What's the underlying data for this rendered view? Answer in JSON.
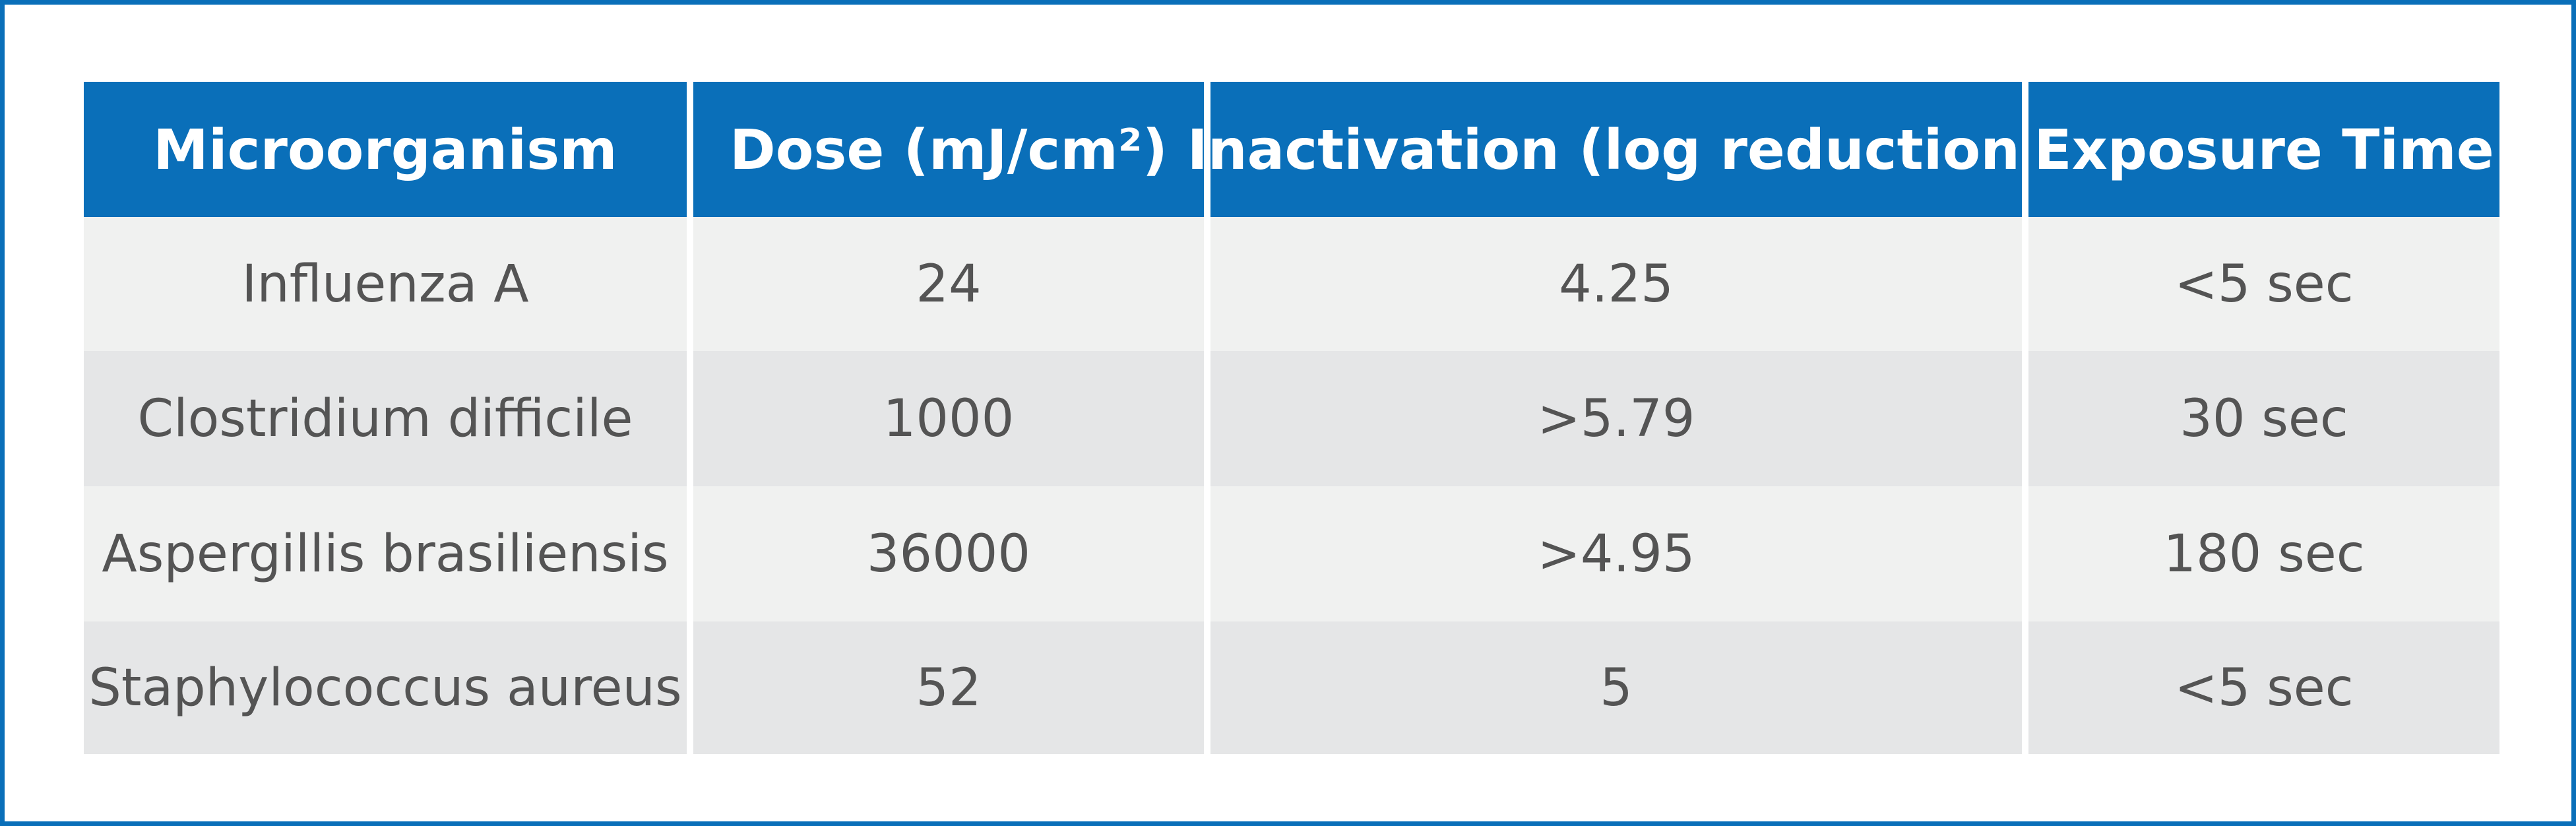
{
  "table": {
    "headers": [
      "Microorganism",
      "Dose (mJ/cm²)",
      "Inactivation (log reduction)",
      "Exposure Time"
    ],
    "rows": [
      [
        "Influenza A",
        "24",
        "4.25",
        "<5 sec"
      ],
      [
        "Clostridium difficile",
        "1000",
        ">5.79",
        "30 sec"
      ],
      [
        "Aspergillis brasiliensis",
        "36000",
        ">4.95",
        "180 sec"
      ],
      [
        "Staphylococcus aureus",
        "52",
        "5",
        "<5 sec"
      ]
    ]
  },
  "colors": {
    "header_bg": "#0a6fb9",
    "border": "#0a6fb9",
    "row_light": "#f0f1f0",
    "row_dark": "#e5e6e7",
    "text": "#545454"
  }
}
